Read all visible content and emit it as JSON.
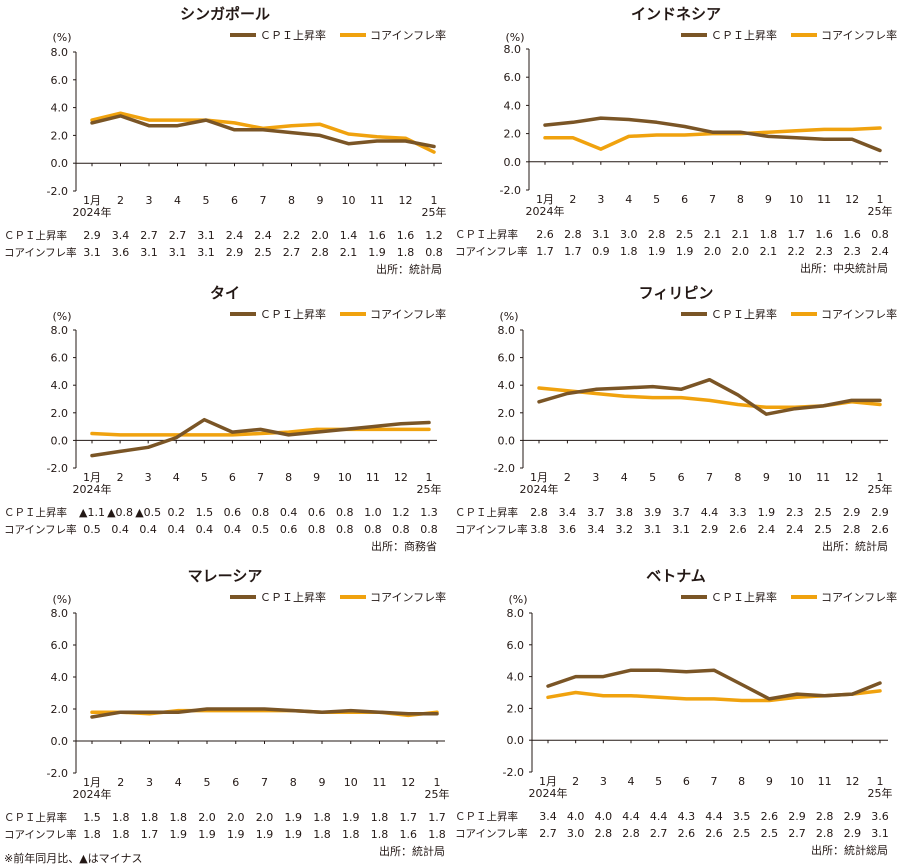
{
  "legend_labels": {
    "cpi": "ＣＰＩ上昇率",
    "core": "コアインフレ率"
  },
  "row_labels": {
    "cpi": "ＣＰＩ上昇率",
    "core": "コアインフレ率"
  },
  "y_unit": "(%)",
  "footnote": "※前年同月比、▲はマイナス",
  "colors": {
    "cpi": "#7a5526",
    "core": "#f0a20e",
    "axis": "#231815"
  },
  "chart_data": [
    {
      "type": "line",
      "title": "シンガポール",
      "categories": [
        "1月",
        "2",
        "3",
        "4",
        "5",
        "6",
        "7",
        "8",
        "9",
        "10",
        "11",
        "12",
        "1"
      ],
      "year_labels": [
        "2024年",
        "25年"
      ],
      "yticks": [
        "8.0",
        "6.0",
        "4.0",
        "2.0",
        "0.0",
        "-2.0"
      ],
      "ylim": [
        -2,
        8
      ],
      "series": [
        {
          "name": "ＣＰＩ上昇率",
          "values": [
            2.9,
            3.4,
            2.7,
            2.7,
            3.1,
            2.4,
            2.4,
            2.2,
            2.0,
            1.4,
            1.6,
            1.6,
            1.2
          ],
          "labels": [
            "2.9",
            "3.4",
            "2.7",
            "2.7",
            "3.1",
            "2.4",
            "2.4",
            "2.2",
            "2.0",
            "1.4",
            "1.6",
            "1.6",
            "1.2"
          ]
        },
        {
          "name": "コアインフレ率",
          "values": [
            3.1,
            3.6,
            3.1,
            3.1,
            3.1,
            2.9,
            2.5,
            2.7,
            2.8,
            2.1,
            1.9,
            1.8,
            0.8
          ],
          "labels": [
            "3.1",
            "3.6",
            "3.1",
            "3.1",
            "3.1",
            "2.9",
            "2.5",
            "2.7",
            "2.8",
            "2.1",
            "1.9",
            "1.8",
            "0.8"
          ]
        }
      ],
      "source": "出所：統計局"
    },
    {
      "type": "line",
      "title": "インドネシア",
      "categories": [
        "1月",
        "2",
        "3",
        "4",
        "5",
        "6",
        "7",
        "8",
        "9",
        "10",
        "11",
        "12",
        "1"
      ],
      "year_labels": [
        "2024年",
        "25年"
      ],
      "yticks": [
        "8.0",
        "6.0",
        "4.0",
        "2.0",
        "0.0",
        "-2.0"
      ],
      "ylim": [
        -2,
        8
      ],
      "series": [
        {
          "name": "ＣＰＩ上昇率",
          "values": [
            2.6,
            2.8,
            3.1,
            3.0,
            2.8,
            2.5,
            2.1,
            2.1,
            1.8,
            1.7,
            1.6,
            1.6,
            0.8
          ],
          "labels": [
            "2.6",
            "2.8",
            "3.1",
            "3.0",
            "2.8",
            "2.5",
            "2.1",
            "2.1",
            "1.8",
            "1.7",
            "1.6",
            "1.6",
            "0.8"
          ]
        },
        {
          "name": "コアインフレ率",
          "values": [
            1.7,
            1.7,
            0.9,
            1.8,
            1.9,
            1.9,
            2.0,
            2.0,
            2.1,
            2.2,
            2.3,
            2.3,
            2.4
          ],
          "labels": [
            "1.7",
            "1.7",
            "0.9",
            "1.8",
            "1.9",
            "1.9",
            "2.0",
            "2.0",
            "2.1",
            "2.2",
            "2.3",
            "2.3",
            "2.4"
          ]
        }
      ],
      "source": "出所：中央統計局"
    },
    {
      "type": "line",
      "title": "タイ",
      "categories": [
        "1月",
        "2",
        "3",
        "4",
        "5",
        "6",
        "7",
        "8",
        "9",
        "10",
        "11",
        "12",
        "1"
      ],
      "year_labels": [
        "2024年",
        "25年"
      ],
      "yticks": [
        "8.0",
        "6.0",
        "4.0",
        "2.0",
        "0.0",
        "-2.0"
      ],
      "ylim": [
        -2,
        8
      ],
      "series": [
        {
          "name": "ＣＰＩ上昇率",
          "values": [
            -1.1,
            -0.8,
            -0.5,
            0.2,
            1.5,
            0.6,
            0.8,
            0.4,
            0.6,
            0.8,
            1.0,
            1.2,
            1.3
          ],
          "labels": [
            "▲1.1",
            "▲0.8",
            "▲0.5",
            "0.2",
            "1.5",
            "0.6",
            "0.8",
            "0.4",
            "0.6",
            "0.8",
            "1.0",
            "1.2",
            "1.3"
          ]
        },
        {
          "name": "コアインフレ率",
          "values": [
            0.5,
            0.4,
            0.4,
            0.4,
            0.4,
            0.4,
            0.5,
            0.6,
            0.8,
            0.8,
            0.8,
            0.8,
            0.8
          ],
          "labels": [
            "0.5",
            "0.4",
            "0.4",
            "0.4",
            "0.4",
            "0.4",
            "0.5",
            "0.6",
            "0.8",
            "0.8",
            "0.8",
            "0.8",
            "0.8"
          ]
        }
      ],
      "source": "出所：商務省"
    },
    {
      "type": "line",
      "title": "フィリピン",
      "categories": [
        "1月",
        "2",
        "3",
        "4",
        "5",
        "6",
        "7",
        "8",
        "9",
        "10",
        "11",
        "12",
        "1"
      ],
      "year_labels": [
        "2024年",
        "25年"
      ],
      "yticks": [
        "8.0",
        "6.0",
        "4.0",
        "2.0",
        "0.0",
        "-2.0"
      ],
      "ylim": [
        -2,
        8
      ],
      "series": [
        {
          "name": "ＣＰＩ上昇率",
          "values": [
            2.8,
            3.4,
            3.7,
            3.8,
            3.9,
            3.7,
            4.4,
            3.3,
            1.9,
            2.3,
            2.5,
            2.9,
            2.9
          ],
          "labels": [
            "2.8",
            "3.4",
            "3.7",
            "3.8",
            "3.9",
            "3.7",
            "4.4",
            "3.3",
            "1.9",
            "2.3",
            "2.5",
            "2.9",
            "2.9"
          ]
        },
        {
          "name": "コアインフレ率",
          "values": [
            3.8,
            3.6,
            3.4,
            3.2,
            3.1,
            3.1,
            2.9,
            2.6,
            2.4,
            2.4,
            2.5,
            2.8,
            2.6
          ],
          "labels": [
            "3.8",
            "3.6",
            "3.4",
            "3.2",
            "3.1",
            "3.1",
            "2.9",
            "2.6",
            "2.4",
            "2.4",
            "2.5",
            "2.8",
            "2.6"
          ]
        }
      ],
      "source": "出所：統計局"
    },
    {
      "type": "line",
      "title": "マレーシア",
      "categories": [
        "1月",
        "2",
        "3",
        "4",
        "5",
        "6",
        "7",
        "8",
        "9",
        "10",
        "11",
        "12",
        "1"
      ],
      "year_labels": [
        "2024年",
        "25年"
      ],
      "yticks": [
        "8.0",
        "6.0",
        "4.0",
        "2.0",
        "0.0",
        "-2.0"
      ],
      "ylim": [
        -2,
        8
      ],
      "series": [
        {
          "name": "ＣＰＩ上昇率",
          "values": [
            1.5,
            1.8,
            1.8,
            1.8,
            2.0,
            2.0,
            2.0,
            1.9,
            1.8,
            1.9,
            1.8,
            1.7,
            1.7
          ],
          "labels": [
            "1.5",
            "1.8",
            "1.8",
            "1.8",
            "2.0",
            "2.0",
            "2.0",
            "1.9",
            "1.8",
            "1.9",
            "1.8",
            "1.7",
            "1.7"
          ]
        },
        {
          "name": "コアインフレ率",
          "values": [
            1.8,
            1.8,
            1.7,
            1.9,
            1.9,
            1.9,
            1.9,
            1.9,
            1.8,
            1.8,
            1.8,
            1.6,
            1.8
          ],
          "labels": [
            "1.8",
            "1.8",
            "1.7",
            "1.9",
            "1.9",
            "1.9",
            "1.9",
            "1.9",
            "1.8",
            "1.8",
            "1.8",
            "1.6",
            "1.8"
          ]
        }
      ],
      "source": "出所：統計局"
    },
    {
      "type": "line",
      "title": "ベトナム",
      "categories": [
        "1月",
        "2",
        "3",
        "4",
        "5",
        "6",
        "7",
        "8",
        "9",
        "10",
        "11",
        "12",
        "1"
      ],
      "year_labels": [
        "2024年",
        "25年"
      ],
      "yticks": [
        "8.0",
        "6.0",
        "4.0",
        "2.0",
        "0.0",
        "-2.0"
      ],
      "ylim": [
        -2,
        8
      ],
      "series": [
        {
          "name": "ＣＰＩ上昇率",
          "values": [
            3.4,
            4.0,
            4.0,
            4.4,
            4.4,
            4.3,
            4.4,
            3.5,
            2.6,
            2.9,
            2.8,
            2.9,
            3.6
          ],
          "labels": [
            "3.4",
            "4.0",
            "4.0",
            "4.4",
            "4.4",
            "4.3",
            "4.4",
            "3.5",
            "2.6",
            "2.9",
            "2.8",
            "2.9",
            "3.6"
          ]
        },
        {
          "name": "コアインフレ率",
          "values": [
            2.7,
            3.0,
            2.8,
            2.8,
            2.7,
            2.6,
            2.6,
            2.5,
            2.5,
            2.7,
            2.8,
            2.9,
            3.1
          ],
          "labels": [
            "2.7",
            "3.0",
            "2.8",
            "2.8",
            "2.7",
            "2.6",
            "2.6",
            "2.5",
            "2.5",
            "2.7",
            "2.8",
            "2.9",
            "3.1"
          ]
        }
      ],
      "source": "出所：統計総局"
    }
  ]
}
